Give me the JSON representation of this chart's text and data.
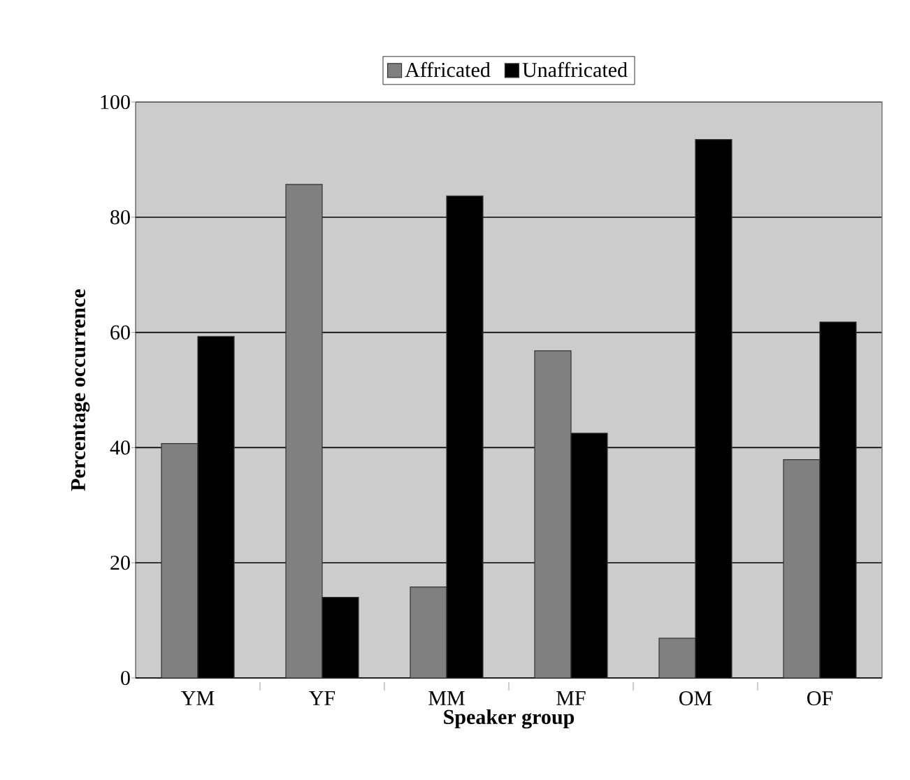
{
  "chart_data": {
    "type": "bar",
    "xlabel": "Speaker group",
    "ylabel": "Percentage occurrence",
    "categories": [
      "YM",
      "YF",
      "MM",
      "MF",
      "OM",
      "OF"
    ],
    "series": [
      {
        "name": "Affricated",
        "color": "#808080",
        "values": [
          40.7,
          85.7,
          15.8,
          56.8,
          6.9,
          37.9
        ]
      },
      {
        "name": "Unaffricated",
        "color": "#000000",
        "values": [
          59.3,
          14.0,
          83.7,
          42.5,
          93.5,
          61.8
        ]
      }
    ],
    "ylim": [
      0,
      100
    ],
    "yticks": [
      0,
      20,
      40,
      60,
      80,
      100
    ],
    "grid": "y",
    "legend": "top"
  }
}
